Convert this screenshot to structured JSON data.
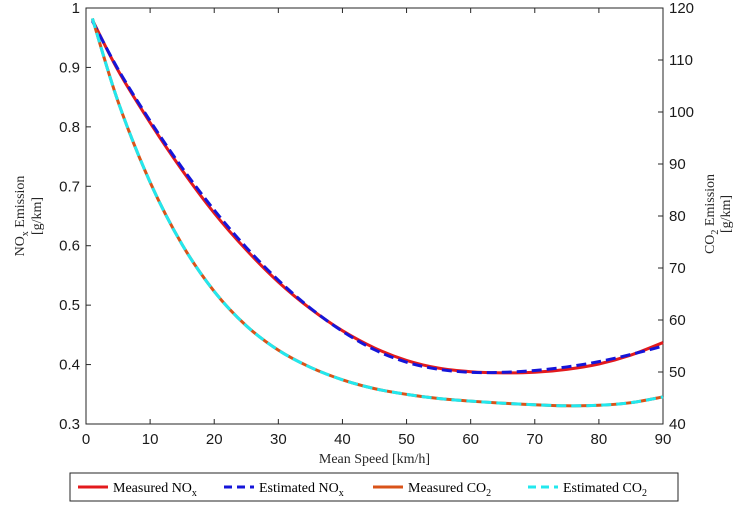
{
  "chart_data": {
    "type": "line",
    "title": "",
    "xlabel": "Mean Speed [km/h]",
    "ylabel_left": {
      "main": "NO",
      "sub": "x",
      "rest": " Emission",
      "unit": "[g/km]"
    },
    "ylabel_right": {
      "main": "CO",
      "sub": "2",
      "rest": " Emission",
      "unit": "[g/km]"
    },
    "xlim": [
      0,
      90
    ],
    "ylim_left": [
      0.3,
      1
    ],
    "ylim_right": [
      40,
      120
    ],
    "xticks": [
      "0",
      "10",
      "20",
      "30",
      "40",
      "50",
      "60",
      "70",
      "80",
      "90"
    ],
    "yticks_left": [
      "0.3",
      "0.4",
      "0.5",
      "0.6",
      "0.7",
      "0.8",
      "0.9",
      "1"
    ],
    "yticks_right": [
      "40",
      "50",
      "60",
      "70",
      "80",
      "90",
      "100",
      "110",
      "120"
    ],
    "grid": false,
    "legend_position": "bottom",
    "x": [
      1,
      5,
      10,
      15,
      20,
      25,
      30,
      35,
      40,
      45,
      50,
      55,
      60,
      65,
      70,
      75,
      80,
      85,
      90
    ],
    "series": [
      {
        "name": "Measured NO",
        "sub": "x",
        "axis": "left",
        "color": "#e31a1c",
        "style": "solid",
        "values": [
          0.98,
          0.895,
          0.807,
          0.727,
          0.655,
          0.593,
          0.539,
          0.494,
          0.457,
          0.428,
          0.407,
          0.394,
          0.388,
          0.386,
          0.387,
          0.392,
          0.401,
          0.416,
          0.437
        ]
      },
      {
        "name": "Estimated NO",
        "sub": "x",
        "axis": "left",
        "color": "#1515d9",
        "style": "dashed",
        "values": [
          0.978,
          0.897,
          0.81,
          0.731,
          0.66,
          0.597,
          0.542,
          0.495,
          0.456,
          0.425,
          0.404,
          0.392,
          0.387,
          0.387,
          0.39,
          0.396,
          0.405,
          0.417,
          0.431
        ]
      },
      {
        "name": "Measured CO",
        "sub": "2",
        "axis": "right",
        "color": "#d95319",
        "style": "solid",
        "values": [
          118.0,
          102.0,
          86.5,
          74.5,
          65.5,
          58.9,
          54.2,
          50.9,
          48.5,
          46.8,
          45.7,
          44.9,
          44.4,
          44.0,
          43.7,
          43.5,
          43.6,
          44.1,
          45.2
        ]
      },
      {
        "name": "Estimated CO",
        "sub": "2",
        "axis": "right",
        "color": "#22e8ee",
        "style": "dashed",
        "values": [
          118.0,
          102.0,
          86.5,
          74.5,
          65.5,
          58.9,
          54.2,
          50.9,
          48.5,
          46.8,
          45.7,
          44.9,
          44.4,
          44.0,
          43.7,
          43.5,
          43.6,
          44.1,
          45.2
        ]
      }
    ]
  }
}
